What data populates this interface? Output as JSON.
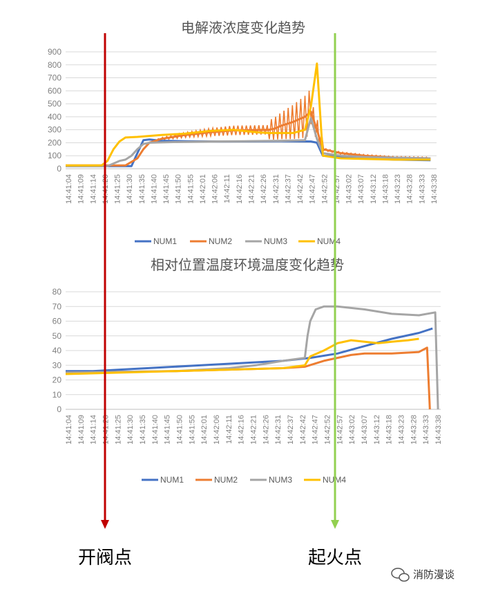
{
  "chart_data": [
    {
      "type": "line",
      "title": "电解液浓度变化趋势",
      "ylim": [
        0,
        900
      ],
      "yticks": [
        0,
        100,
        200,
        300,
        400,
        500,
        600,
        700,
        800,
        900
      ],
      "xtick_labels": [
        "14:41:04",
        "14:41:09",
        "14:41:14",
        "14:41:20",
        "14:41:25",
        "14:41:30",
        "14:41:35",
        "14:41:40",
        "14:41:45",
        "14:41:50",
        "14:41:55",
        "14:42:01",
        "14:42:06",
        "14:42:11",
        "14:42:16",
        "14:42:21",
        "14:42:26",
        "14:42:31",
        "14:42:37",
        "14:42:42",
        "14:42:47",
        "14:42:52",
        "14:42:57",
        "14:43:02",
        "14:43:07",
        "14:43:12",
        "14:43:18",
        "14:43:23",
        "14:43:28",
        "14:43:33",
        "14:43:38"
      ],
      "grid": true,
      "legend": "bottom",
      "series": [
        {
          "name": "NUM1",
          "color": "#4472C4",
          "points": [
            [
              0,
              20
            ],
            [
              11,
              20
            ],
            [
              12,
              120
            ],
            [
              13,
              220
            ],
            [
              14,
              225
            ],
            [
              16,
              215
            ],
            [
              20,
              212
            ],
            [
              26,
              210
            ],
            [
              36,
              212
            ],
            [
              41,
              210
            ],
            [
              42,
              200
            ],
            [
              43,
              100
            ],
            [
              50,
              80
            ],
            [
              55,
              70
            ],
            [
              61,
              65
            ]
          ]
        },
        {
          "name": "NUM2",
          "color": "#ED7D31",
          "points": [
            [
              0,
              25
            ],
            [
              8,
              25
            ],
            [
              10,
              25
            ],
            [
              12,
              80
            ],
            [
              13,
              150
            ],
            [
              14,
              200
            ],
            [
              16,
              230
            ],
            [
              20,
              260
            ],
            [
              24,
              280
            ],
            [
              28,
              295
            ],
            [
              34,
              300
            ],
            [
              35,
              310
            ],
            [
              36,
              330
            ],
            [
              38,
              360
            ],
            [
              40,
              400
            ],
            [
              41,
              440
            ],
            [
              42,
              300
            ],
            [
              43,
              150
            ],
            [
              46,
              120
            ],
            [
              50,
              100
            ],
            [
              55,
              85
            ],
            [
              61,
              80
            ]
          ]
        },
        {
          "name": "NUM3",
          "color": "#A5A5A5",
          "points": [
            [
              0,
              20
            ],
            [
              7,
              20
            ],
            [
              8,
              40
            ],
            [
              9,
              60
            ],
            [
              10,
              70
            ],
            [
              11,
              100
            ],
            [
              12,
              150
            ],
            [
              13,
              190
            ],
            [
              14,
              200
            ],
            [
              18,
              205
            ],
            [
              24,
              210
            ],
            [
              30,
              212
            ],
            [
              36,
              215
            ],
            [
              40,
              220
            ],
            [
              41,
              390
            ],
            [
              42,
              230
            ],
            [
              43,
              120
            ],
            [
              46,
              100
            ],
            [
              50,
              90
            ],
            [
              55,
              85
            ],
            [
              61,
              80
            ]
          ]
        },
        {
          "name": "NUM4",
          "color": "#FFC000",
          "points": [
            [
              0,
              25
            ],
            [
              6,
              25
            ],
            [
              7,
              60
            ],
            [
              8,
              150
            ],
            [
              9,
              210
            ],
            [
              10,
              240
            ],
            [
              12,
              245
            ],
            [
              16,
              260
            ],
            [
              20,
              270
            ],
            [
              24,
              290
            ],
            [
              28,
              300
            ],
            [
              32,
              280
            ],
            [
              34,
              275
            ],
            [
              36,
              275
            ],
            [
              38,
              275
            ],
            [
              40,
              300
            ],
            [
              41,
              480
            ],
            [
              42,
              810
            ],
            [
              43,
              100
            ],
            [
              46,
              80
            ],
            [
              50,
              75
            ],
            [
              55,
              70
            ],
            [
              61,
              70
            ]
          ]
        }
      ],
      "noise_band": {
        "series": "NUM2",
        "color": "#ED7D31"
      }
    },
    {
      "type": "line",
      "title": "相对位置温度环境温度变化趋势",
      "ylim": [
        0,
        80
      ],
      "yticks": [
        0,
        10,
        20,
        30,
        40,
        50,
        60,
        70,
        80
      ],
      "xtick_labels": [
        "14:41:04",
        "14:41:09",
        "14:41:14",
        "14:41:20",
        "14:41:25",
        "14:41:30",
        "14:41:35",
        "14:41:40",
        "14:41:45",
        "14:41:50",
        "14:41:55",
        "14:42:01",
        "14:42:06",
        "14:42:11",
        "14:42:16",
        "14:42:21",
        "14:42:26",
        "14:42:31",
        "14:42:37",
        "14:42:42",
        "14:42:47",
        "14:42:52",
        "14:42:57",
        "14:43:02",
        "14:43:07",
        "14:43:12",
        "14:43:18",
        "14:43:23",
        "14:43:28",
        "14:43:33",
        "14:43:38"
      ],
      "grid": true,
      "legend": "bottom",
      "series": [
        {
          "name": "NUM1",
          "color": "#4472C4",
          "points": [
            [
              0,
              26
            ],
            [
              10,
              26
            ],
            [
              20,
              27
            ],
            [
              30,
              28
            ],
            [
              40,
              29
            ],
            [
              50,
              30
            ],
            [
              60,
              31
            ],
            [
              70,
              32
            ],
            [
              80,
              33
            ],
            [
              90,
              35
            ],
            [
              100,
              38
            ],
            [
              110,
              43
            ],
            [
              120,
              48
            ],
            [
              130,
              52
            ],
            [
              135,
              55
            ]
          ]
        },
        {
          "name": "NUM2",
          "color": "#ED7D31",
          "points": [
            [
              0,
              25
            ],
            [
              20,
              25.5
            ],
            [
              40,
              26
            ],
            [
              60,
              27
            ],
            [
              80,
              28
            ],
            [
              88,
              29
            ],
            [
              95,
              33
            ],
            [
              100,
              35
            ],
            [
              105,
              37
            ],
            [
              110,
              38
            ],
            [
              120,
              38
            ],
            [
              130,
              39
            ],
            [
              133,
              42
            ],
            [
              134,
              0
            ]
          ]
        },
        {
          "name": "NUM3",
          "color": "#A5A5A5",
          "points": [
            [
              0,
              25
            ],
            [
              20,
              25.5
            ],
            [
              40,
              26
            ],
            [
              60,
              28
            ],
            [
              70,
              30
            ],
            [
              80,
              33
            ],
            [
              88,
              35
            ],
            [
              89,
              50
            ],
            [
              90,
              60
            ],
            [
              92,
              68
            ],
            [
              95,
              70
            ],
            [
              100,
              70
            ],
            [
              110,
              68
            ],
            [
              120,
              65
            ],
            [
              130,
              64
            ],
            [
              136,
              66
            ],
            [
              137,
              0
            ]
          ]
        },
        {
          "name": "NUM4",
          "color": "#FFC000",
          "points": [
            [
              0,
              24
            ],
            [
              20,
              25
            ],
            [
              40,
              26
            ],
            [
              60,
              27
            ],
            [
              80,
              28
            ],
            [
              88,
              30
            ],
            [
              90,
              36
            ],
            [
              95,
              40
            ],
            [
              100,
              45
            ],
            [
              105,
              47
            ],
            [
              110,
              46
            ],
            [
              115,
              45
            ],
            [
              120,
              46
            ],
            [
              126,
              47
            ],
            [
              130,
              48
            ]
          ]
        }
      ]
    }
  ],
  "markers": [
    {
      "label": "开阀点",
      "color": "#C00000"
    },
    {
      "label": "起火点",
      "color": "#92D050"
    }
  ],
  "watermark": "消防漫谈"
}
